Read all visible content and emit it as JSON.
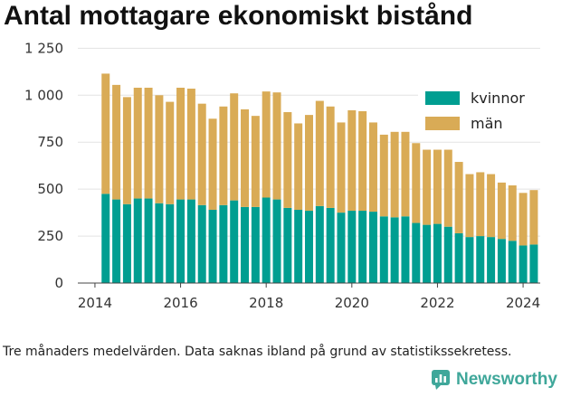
{
  "title": "Antal mottagare ekonomiskt bistånd",
  "footnote": "Tre månaders medelvärden. Data saknas ibland på grund av statistikssekretess.",
  "brand": {
    "name": "Newsworthy",
    "icon": "bar-chart-logo-icon",
    "color": "#3fa79a"
  },
  "chart_data": {
    "type": "bar",
    "stacked": true,
    "x_unit": "year (quarterly points)",
    "x": [
      2014.25,
      2014.5,
      2014.75,
      2015.0,
      2015.25,
      2015.5,
      2015.75,
      2016.0,
      2016.25,
      2016.5,
      2016.75,
      2017.0,
      2017.25,
      2017.5,
      2017.75,
      2018.0,
      2018.25,
      2018.5,
      2018.75,
      2019.0,
      2019.25,
      2019.5,
      2019.75,
      2020.0,
      2020.25,
      2020.5,
      2020.75,
      2021.0,
      2021.25,
      2021.5,
      2021.75,
      2022.0,
      2022.25,
      2022.5,
      2022.75,
      2023.0,
      2023.25,
      2023.5,
      2023.75,
      2024.0,
      2024.25
    ],
    "series": [
      {
        "name": "kvinnor",
        "color": "#009e91",
        "values": [
          475,
          445,
          420,
          450,
          450,
          425,
          420,
          445,
          445,
          415,
          390,
          415,
          440,
          405,
          405,
          455,
          445,
          400,
          390,
          385,
          410,
          400,
          375,
          385,
          385,
          380,
          355,
          350,
          355,
          320,
          310,
          315,
          300,
          265,
          245,
          250,
          245,
          235,
          225,
          200,
          205
        ]
      },
      {
        "name": "män",
        "color": "#d9ab56",
        "values": [
          640,
          610,
          570,
          590,
          590,
          575,
          545,
          595,
          590,
          540,
          485,
          525,
          570,
          520,
          485,
          565,
          570,
          510,
          460,
          510,
          560,
          540,
          480,
          535,
          530,
          475,
          435,
          455,
          450,
          425,
          400,
          395,
          410,
          380,
          335,
          340,
          335,
          300,
          295,
          280,
          290
        ]
      }
    ],
    "ylim": [
      0,
      1300
    ],
    "yticks": [
      0,
      250,
      500,
      750,
      1000,
      1250
    ],
    "ytick_labels": [
      "0",
      "250",
      "500",
      "750",
      "1 000",
      "1 250"
    ],
    "xlim": [
      2013.6,
      2024.4
    ],
    "xticks": [
      2014,
      2016,
      2018,
      2020,
      2022,
      2024
    ],
    "xtick_labels": [
      "2014",
      "2016",
      "2018",
      "2020",
      "2022",
      "2024"
    ],
    "grid": "horizontal",
    "legend": "top-right"
  }
}
